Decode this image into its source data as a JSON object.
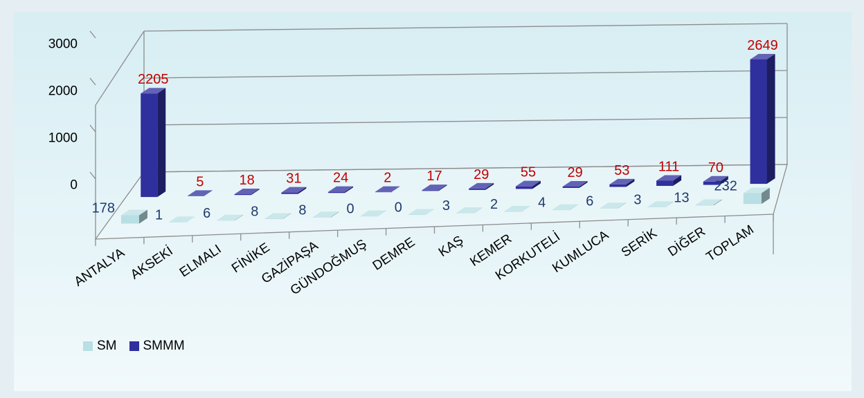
{
  "chart_data": {
    "type": "bar",
    "title": "",
    "xlabel": "",
    "ylabel": "",
    "ylim": [
      0,
      3000
    ],
    "yticks": [
      0,
      1000,
      2000,
      3000
    ],
    "grid": true,
    "legend_position": "bottom-left",
    "categories": [
      "ANTALYA",
      "AKSEKİ",
      "ELMALI",
      "FİNİKE",
      "GAZİPAŞA",
      "GÜNDOĞMUŞ",
      "DEMRE",
      "KAŞ",
      "KEMER",
      "KORKUTELİ",
      "KUMLUCA",
      "SERİK",
      "DİĞER",
      "TOPLAM"
    ],
    "series": [
      {
        "name": "SM",
        "color": "#b8dfe3",
        "values": [
          178,
          1,
          6,
          8,
          8,
          0,
          0,
          3,
          2,
          4,
          6,
          3,
          13,
          232
        ]
      },
      {
        "name": "SMMM",
        "color": "#2f2f9e",
        "values": [
          2205,
          5,
          18,
          31,
          24,
          2,
          17,
          29,
          55,
          29,
          53,
          111,
          70,
          2649
        ]
      }
    ]
  }
}
